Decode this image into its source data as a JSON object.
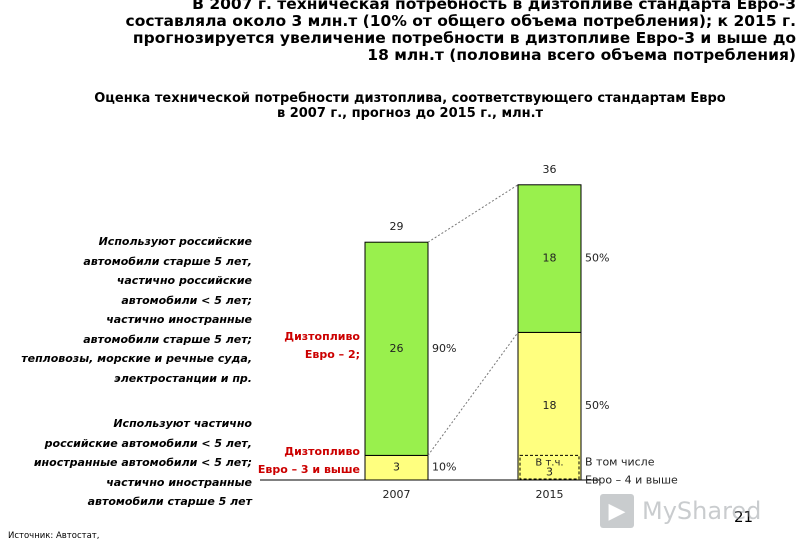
{
  "header": {
    "headline_lines": [
      "В 2007 г. техническая потребность в дизтопливе стандарта Евро-3",
      "составляла около 3 млн.т (10%  от общего объема потребления); к 2015 г.",
      "прогнозируется увеличение потребности в дизтопливе Евро-3 и выше до",
      "18 млн.т (половина всего объема потребления)"
    ]
  },
  "side_notes": {
    "upper": "Используют российские\nавтомобили старше 5 лет,\nчастично российские\nавтомобили < 5 лет;\nчастично иностранные\nавтомобили старше 5 лет;\nтепловозы, морские и речные суда,\nэлектростанции и пр.",
    "lower": "Используют частично\nроссийские автомобили < 5 лет,\nиностранные автомобили < 5 лет;\nчастично иностранные\nавтомобили старше 5 лет"
  },
  "chart_data": {
    "type": "bar",
    "stacked": true,
    "title_lines": [
      "Оценка технической потребности дизтоплива, соответствующего стандартам Евро",
      "в 2007 г., прогноз до 2015 г., млн.т"
    ],
    "categories": [
      "2007",
      "2015"
    ],
    "series": [
      {
        "name": "Дизтопливо Евро – 3 и выше",
        "label_lines": [
          "Дизтопливо",
          "Евро – 3 и выше"
        ],
        "values": [
          3,
          18
        ],
        "shares": [
          "10%",
          "50%"
        ],
        "color": "#ffff7f"
      },
      {
        "name": "Дизтопливо Евро – 2;",
        "label_lines": [
          "Дизтопливо",
          "Евро – 2;"
        ],
        "values": [
          26,
          18
        ],
        "shares": [
          "90%",
          "50%"
        ],
        "color": "#99f04d"
      }
    ],
    "totals": [
      29,
      36
    ],
    "inner_segment": {
      "category": "2015",
      "value": 3,
      "label": "В т.ч.",
      "legend_lines": [
        "В том числе",
        "Евро – 4 и выше"
      ]
    },
    "ylim": [
      0,
      36
    ],
    "grid": false,
    "series_label_color": "#cc0000"
  },
  "footer": {
    "source": "Источник: Автостат,",
    "page_number": "21",
    "watermark": "MyShared"
  }
}
